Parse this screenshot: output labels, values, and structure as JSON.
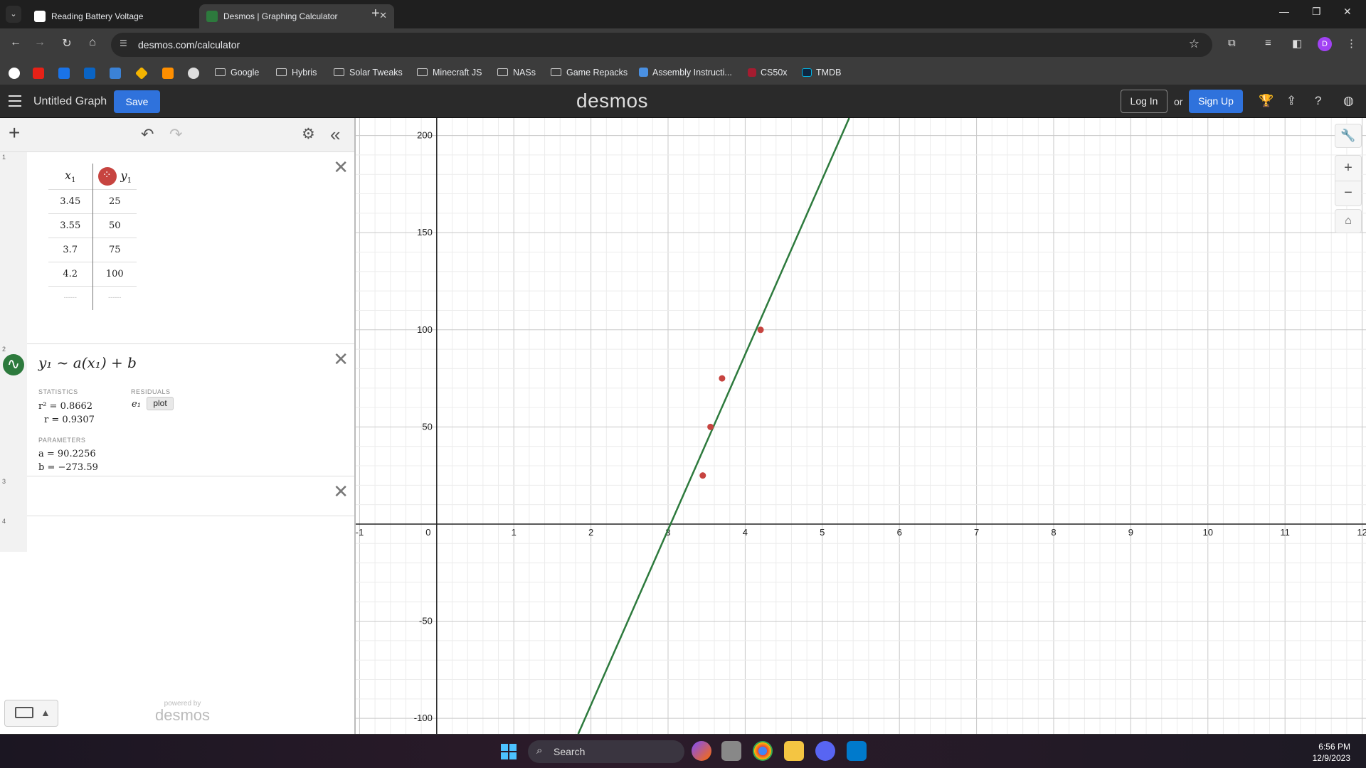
{
  "browser": {
    "tabs": [
      {
        "title": "Reading Battery Voltage",
        "active": false
      },
      {
        "title": "Desmos | Graphing Calculator",
        "active": true
      }
    ],
    "url": "desmos.com/calculator",
    "profile_initial": "D",
    "bookmarks": [
      "Google",
      "Hybris",
      "Solar Tweaks",
      "Minecraft JS",
      "NASs",
      "Game Repacks",
      "Assembly Instructi...",
      "CS50x",
      "TMDB"
    ]
  },
  "desmos": {
    "graph_title": "Untitled Graph",
    "save_label": "Save",
    "logo": "desmos",
    "login_label": "Log In",
    "or_label": "or",
    "signup_label": "Sign Up"
  },
  "expressions": {
    "row_numbers": [
      "1",
      "2",
      "3",
      "4"
    ],
    "table": {
      "headers": [
        "x",
        "y"
      ],
      "header_subscript": "1",
      "rows": [
        [
          "3.45",
          "25"
        ],
        [
          "3.55",
          "50"
        ],
        [
          "3.7",
          "75"
        ],
        [
          "4.2",
          "100"
        ]
      ],
      "empty_placeholder": "------"
    },
    "regression": {
      "formula": "y₁ ~ a(x₁) + b",
      "statistics_label": "STATISTICS",
      "residuals_label": "RESIDUALS",
      "r2": "r² = 0.8662",
      "r": "r = 0.9307",
      "residual_var": "e₁",
      "plot_label": "plot",
      "parameters_label": "PARAMETERS",
      "a": "a = 90.2256",
      "b": "b = −273.59"
    },
    "powered_by": "powered by",
    "powered_logo": "desmos"
  },
  "chart_data": {
    "type": "scatter",
    "title": "",
    "xlabel": "",
    "ylabel": "",
    "xlim": [
      -1.05,
      12.05
    ],
    "ylim": [
      -108,
      209
    ],
    "x_ticks": [
      -1,
      0,
      1,
      2,
      3,
      4,
      5,
      6,
      7,
      8,
      9,
      10,
      11,
      12
    ],
    "y_ticks": [
      -100,
      -50,
      50,
      100,
      150,
      200
    ],
    "grid": true,
    "points": [
      {
        "x": 3.45,
        "y": 25
      },
      {
        "x": 3.55,
        "y": 50
      },
      {
        "x": 3.7,
        "y": 75
      },
      {
        "x": 4.2,
        "y": 100
      }
    ],
    "fit_line": {
      "slope": 90.2256,
      "intercept": -273.59
    },
    "colors": {
      "points": "#c74440",
      "line": "#2d7a3d"
    }
  },
  "taskbar": {
    "search_label": "Search",
    "time": "6:56 PM",
    "date": "12/9/2023"
  }
}
